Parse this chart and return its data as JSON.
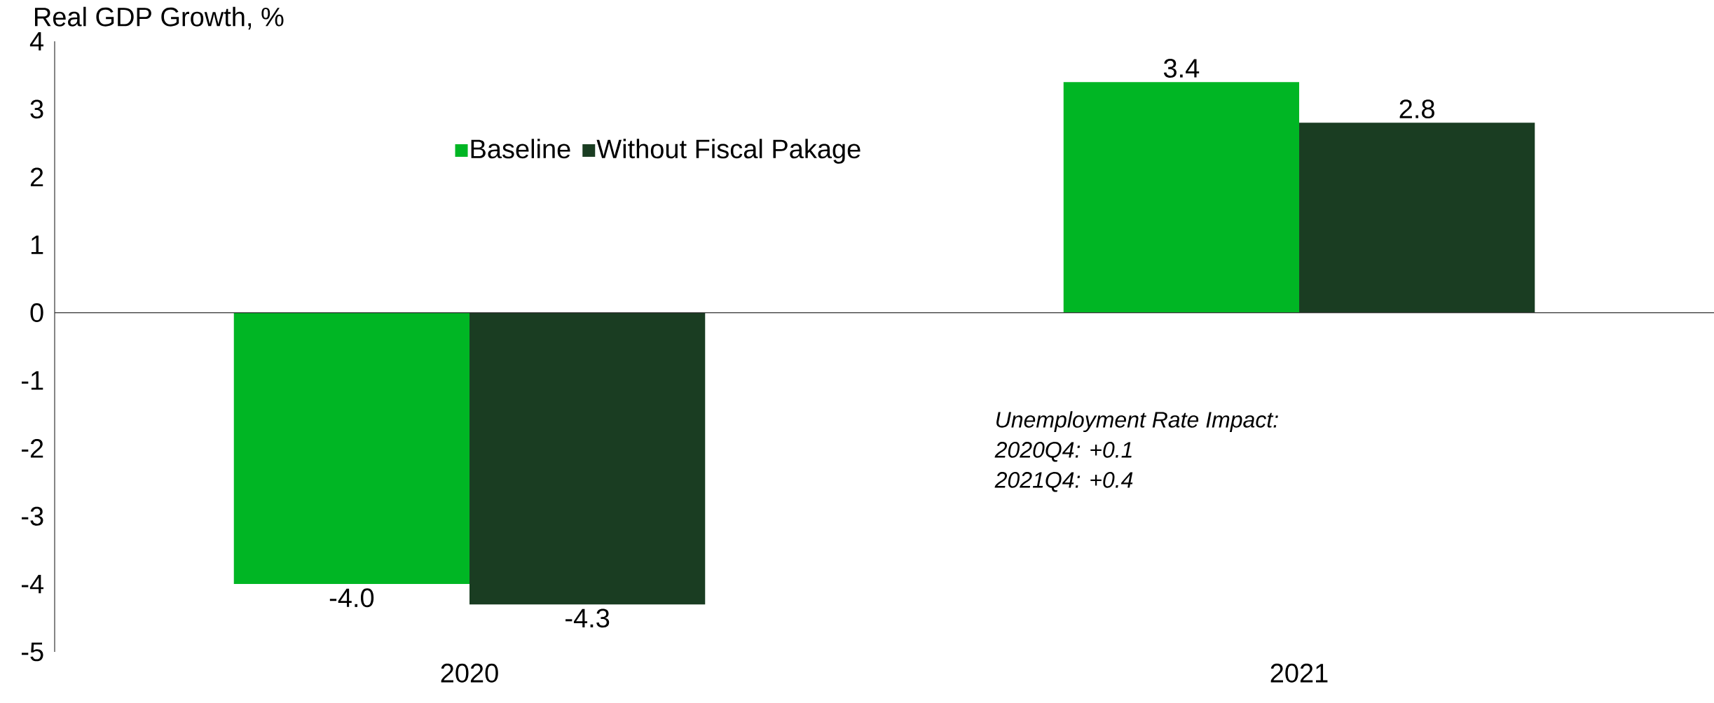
{
  "chart_data": {
    "type": "bar",
    "ylabel": "Real GDP Growth, %",
    "categories": [
      "2020",
      "2021"
    ],
    "series": [
      {
        "name": "Baseline",
        "color": "#00b624",
        "values": [
          -4.0,
          3.4
        ],
        "value_labels": [
          "-4.0",
          "3.4"
        ]
      },
      {
        "name": "Without Fiscal Pakage",
        "color": "#1a3d22",
        "values": [
          -4.3,
          2.8
        ],
        "value_labels": [
          "-4.3",
          "2.8"
        ]
      }
    ],
    "ylim": [
      -5,
      4
    ],
    "yticks": [
      -5,
      -4,
      -3,
      -2,
      -1,
      0,
      1,
      2,
      3,
      4
    ],
    "legend": "top left",
    "ref_lines": [
      {
        "axis": "y",
        "value": 0
      }
    ],
    "annotations": [
      "Unemployment Rate Impact:",
      "2020Q4: +0.1",
      "2021Q4: +0.4"
    ]
  }
}
